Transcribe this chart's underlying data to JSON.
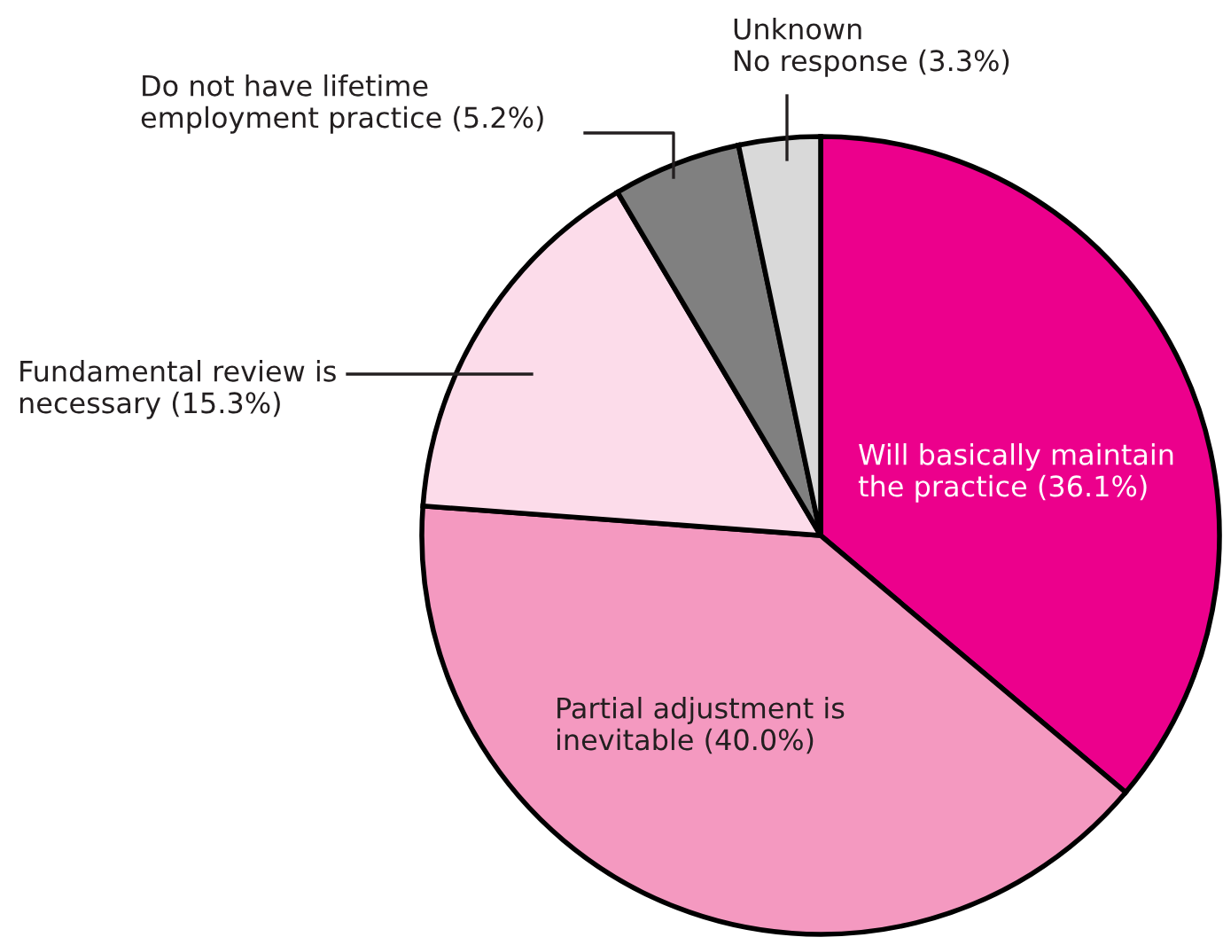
{
  "chart_data": {
    "type": "pie",
    "categories": [
      "Will basically maintain\nthe practice",
      "Partial adjustment is\ninevitable",
      "Fundamental review is\nnecessary",
      "Do not have lifetime\nemployment practice",
      "Unknown\nNo response"
    ],
    "values": [
      36.1,
      40.0,
      15.3,
      5.2,
      3.3
    ],
    "value_labels": [
      "(36.1%)",
      "(40.0%)",
      "(15.3%)",
      "(5.2%)",
      "(3.3%)"
    ],
    "colors": [
      "#ec008c",
      "#f499c0",
      "#fcdcea",
      "#808080",
      "#d9d9d9"
    ]
  }
}
